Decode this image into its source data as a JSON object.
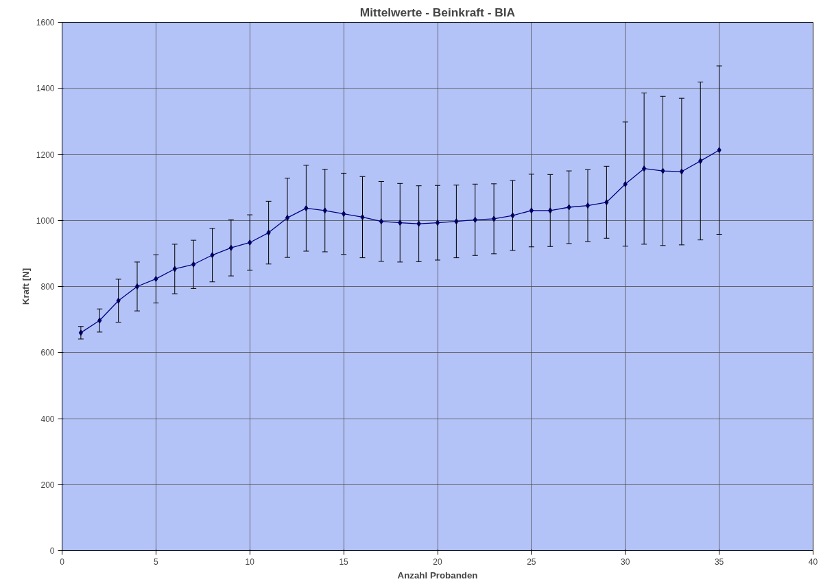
{
  "chart_data": {
    "type": "line",
    "title": "Mittelwerte - Beinkraft - BIA",
    "xlabel": "Anzahl Probanden",
    "ylabel": "Kraft [N]",
    "x": [
      1,
      2,
      3,
      4,
      5,
      6,
      7,
      8,
      9,
      10,
      11,
      12,
      13,
      14,
      15,
      16,
      17,
      18,
      19,
      20,
      21,
      22,
      23,
      24,
      25,
      26,
      27,
      28,
      29,
      30,
      31,
      32,
      33,
      34,
      35
    ],
    "series": [
      {
        "color": "#000080",
        "values": [
          660,
          697,
          757,
          800,
          823,
          853,
          867,
          895,
          917,
          933,
          963,
          1008,
          1037,
          1030,
          1020,
          1010,
          997,
          993,
          990,
          993,
          997,
          1002,
          1005,
          1015,
          1030,
          1030,
          1040,
          1045,
          1055,
          1110,
          1157,
          1150,
          1148,
          1180,
          1213
        ],
        "errors": [
          19,
          35,
          65,
          74,
          73,
          75,
          73,
          81,
          85,
          84,
          95,
          120,
          130,
          125,
          123,
          123,
          121,
          119,
          115,
          113,
          110,
          108,
          106,
          106,
          110,
          109,
          110,
          109,
          109,
          188,
          229,
          226,
          222,
          239,
          255
        ]
      }
    ],
    "xlim": [
      0,
      40
    ],
    "xticks": [
      0,
      5,
      10,
      15,
      20,
      25,
      30,
      35,
      40
    ],
    "ylim": [
      0,
      1600
    ],
    "yticks": [
      0,
      200,
      400,
      600,
      800,
      1000,
      1200,
      1400,
      1600
    ],
    "grid": true,
    "marker": "diamond",
    "line_style": "solid"
  }
}
